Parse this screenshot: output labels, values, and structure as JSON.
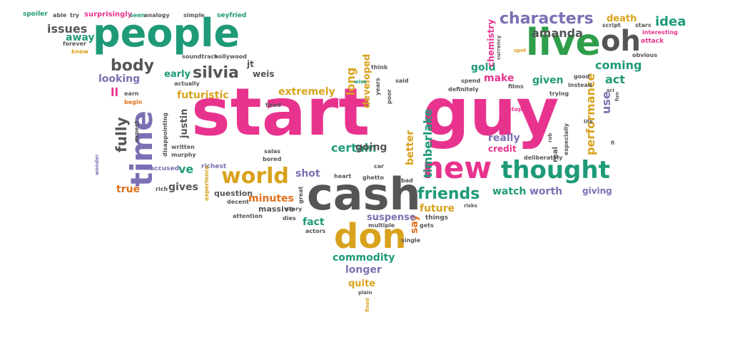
{
  "colors": {
    "pink": "#e8338e",
    "teal": "#1e9a78",
    "gray": "#555555",
    "purple": "#7d6fb3",
    "gold": "#d9a21c",
    "orange": "#e0701b",
    "green": "#2e9e4a"
  },
  "words": [
    {
      "text": "start",
      "color": "pink",
      "size": 92
    },
    {
      "text": "guy",
      "color": "pink",
      "size": 92
    },
    {
      "text": "cash",
      "color": "gray",
      "size": 62
    },
    {
      "text": "people",
      "color": "teal",
      "size": 52
    },
    {
      "text": "live",
      "color": "green",
      "size": 52
    },
    {
      "text": "don",
      "color": "gold",
      "size": 50
    },
    {
      "text": "new",
      "color": "pink",
      "size": 42
    },
    {
      "text": "time",
      "color": "purple",
      "size": 40
    },
    {
      "text": "thought",
      "color": "teal",
      "size": 34
    },
    {
      "text": "oh",
      "color": "gray",
      "size": 40
    },
    {
      "text": "world",
      "color": "gold",
      "size": 30
    },
    {
      "text": "characters",
      "color": "purple",
      "size": 22
    },
    {
      "text": "friends",
      "color": "teal",
      "size": 22
    },
    {
      "text": "body",
      "color": "gray",
      "size": 22
    },
    {
      "text": "silvia",
      "color": "gray",
      "size": 22
    },
    {
      "text": "idea",
      "color": "teal",
      "size": 18
    },
    {
      "text": "amanda",
      "color": "gray",
      "size": 16
    },
    {
      "text": "coming",
      "color": "teal",
      "size": 16
    },
    {
      "text": "fully",
      "color": "gray",
      "size": 20
    },
    {
      "text": "issues",
      "color": "gray",
      "size": 16
    },
    {
      "text": "away",
      "color": "teal",
      "size": 14
    },
    {
      "text": "looking",
      "color": "purple",
      "size": 14
    },
    {
      "text": "early",
      "color": "teal",
      "size": 13
    },
    {
      "text": "futuristic",
      "color": "gold",
      "size": 14
    },
    {
      "text": "extremely",
      "color": "gold",
      "size": 14
    },
    {
      "text": "long",
      "color": "gold",
      "size": 16
    },
    {
      "text": "developed",
      "color": "gold",
      "size": 13
    },
    {
      "text": "gold",
      "color": "teal",
      "size": 14
    },
    {
      "text": "make",
      "color": "pink",
      "size": 14
    },
    {
      "text": "given",
      "color": "teal",
      "size": 14
    },
    {
      "text": "act",
      "color": "teal",
      "size": 16
    },
    {
      "text": "use",
      "color": "purple",
      "size": 16
    },
    {
      "text": "performance",
      "color": "gold",
      "size": 16
    },
    {
      "text": "ll",
      "color": "pink",
      "size": 16
    },
    {
      "text": "justin",
      "color": "gray",
      "size": 13
    },
    {
      "text": "certain",
      "color": "teal",
      "size": 16
    },
    {
      "text": "going",
      "color": "gray",
      "size": 14
    },
    {
      "text": "better",
      "color": "gold",
      "size": 14
    },
    {
      "text": "timberlake",
      "color": "teal",
      "size": 16
    },
    {
      "text": "really",
      "color": "purple",
      "size": 14
    },
    {
      "text": "credit",
      "color": "pink",
      "size": 12
    },
    {
      "text": "ve",
      "color": "teal",
      "size": 16
    },
    {
      "text": "gives",
      "color": "gray",
      "size": 14
    },
    {
      "text": "true",
      "color": "orange",
      "size": 14
    },
    {
      "text": "shot",
      "color": "purple",
      "size": 14
    },
    {
      "text": "minutes",
      "color": "orange",
      "size": 14
    },
    {
      "text": "watch",
      "color": "teal",
      "size": 14
    },
    {
      "text": "worth",
      "color": "purple",
      "size": 14
    },
    {
      "text": "giving",
      "color": "purple",
      "size": 12
    },
    {
      "text": "say",
      "color": "orange",
      "size": 14
    },
    {
      "text": "future",
      "color": "gold",
      "size": 14
    },
    {
      "text": "suspense",
      "color": "purple",
      "size": 13
    },
    {
      "text": "fact",
      "color": "teal",
      "size": 14
    },
    {
      "text": "commodity",
      "color": "teal",
      "size": 14
    },
    {
      "text": "longer",
      "color": "purple",
      "size": 14
    },
    {
      "text": "quite",
      "color": "gold",
      "size": 13
    },
    {
      "text": "death",
      "color": "gold",
      "size": 13
    },
    {
      "text": "chemistry",
      "color": "pink",
      "size": 12
    },
    {
      "text": "jt",
      "color": "gray",
      "size": 12
    },
    {
      "text": "weis",
      "color": "gray",
      "size": 12
    },
    {
      "text": "massive",
      "color": "gray",
      "size": 11
    },
    {
      "text": "question",
      "color": "gray",
      "size": 11
    },
    {
      "text": "spoiler",
      "color": "teal",
      "size": 9
    },
    {
      "text": "able",
      "color": "gray",
      "size": 8
    },
    {
      "text": "try",
      "color": "gray",
      "size": 8
    },
    {
      "text": "surprisingly",
      "color": "pink",
      "size": 10
    },
    {
      "text": "seen",
      "color": "teal",
      "size": 8
    },
    {
      "text": "analogy",
      "color": "gray",
      "size": 8
    },
    {
      "text": "simple",
      "color": "gray",
      "size": 8
    },
    {
      "text": "seyfried",
      "color": "teal",
      "size": 9
    },
    {
      "text": "forever",
      "color": "gray",
      "size": 8
    },
    {
      "text": "know",
      "color": "gold",
      "size": 8
    },
    {
      "text": "soundtrack",
      "color": "gray",
      "size": 8
    },
    {
      "text": "hollywood",
      "color": "gray",
      "size": 8
    },
    {
      "text": "actually",
      "color": "gray",
      "size": 8
    },
    {
      "text": "earn",
      "color": "gray",
      "size": 8
    },
    {
      "text": "begin",
      "color": "orange",
      "size": 8
    },
    {
      "text": "expect",
      "color": "gray",
      "size": 8
    },
    {
      "text": "disappointing",
      "color": "gray",
      "size": 8
    },
    {
      "text": "written",
      "color": "gray",
      "size": 8
    },
    {
      "text": "murphy",
      "color": "gray",
      "size": 8
    },
    {
      "text": "accused",
      "color": "purple",
      "size": 9
    },
    {
      "text": "richest",
      "color": "purple",
      "size": 9
    },
    {
      "text": "bored",
      "color": "gray",
      "size": 8
    },
    {
      "text": "car",
      "color": "gray",
      "size": 8
    },
    {
      "text": "heart",
      "color": "gray",
      "size": 8
    },
    {
      "text": "ghetto",
      "color": "gray",
      "size": 8
    },
    {
      "text": "bad",
      "color": "gray",
      "size": 8
    },
    {
      "text": "experience",
      "color": "gold",
      "size": 8
    },
    {
      "text": "rich",
      "color": "gray",
      "size": 8
    },
    {
      "text": "decent",
      "color": "gray",
      "size": 8
    },
    {
      "text": "attention",
      "color": "gray",
      "size": 8
    },
    {
      "text": "story",
      "color": "gray",
      "size": 8
    },
    {
      "text": "dies",
      "color": "gray",
      "size": 8
    },
    {
      "text": "actors",
      "color": "gray",
      "size": 8
    },
    {
      "text": "multiple",
      "color": "gray",
      "size": 8
    },
    {
      "text": "gets",
      "color": "gray",
      "size": 8
    },
    {
      "text": "things",
      "color": "gray",
      "size": 9
    },
    {
      "text": "single",
      "color": "gray",
      "size": 8
    },
    {
      "text": "risks",
      "color": "gray",
      "size": 7
    },
    {
      "text": "plain",
      "color": "gray",
      "size": 7
    },
    {
      "text": "fixed",
      "color": "gold",
      "size": 7
    },
    {
      "text": "tired",
      "color": "gray",
      "size": 8
    },
    {
      "text": "salas",
      "color": "gray",
      "size": 8
    },
    {
      "text": "wonder",
      "color": "purple",
      "size": 7
    },
    {
      "text": "think",
      "color": "gray",
      "size": 8
    },
    {
      "text": "said",
      "color": "gray",
      "size": 8
    },
    {
      "text": "years",
      "color": "gray",
      "size": 8
    },
    {
      "text": "poor",
      "color": "gray",
      "size": 8
    },
    {
      "text": "definitely",
      "color": "gray",
      "size": 8
    },
    {
      "text": "spend",
      "color": "gray",
      "size": 8
    },
    {
      "text": "stop",
      "color": "pink",
      "size": 8
    },
    {
      "text": "films",
      "color": "gray",
      "size": 8
    },
    {
      "text": "trying",
      "color": "gray",
      "size": 8
    },
    {
      "text": "instead",
      "color": "gray",
      "size": 8
    },
    {
      "text": "good",
      "color": "gray",
      "size": 8
    },
    {
      "text": "sci",
      "color": "gray",
      "size": 7
    },
    {
      "text": "fun",
      "color": "gray",
      "size": 7
    },
    {
      "text": "real",
      "color": "gray",
      "size": 10
    },
    {
      "text": "especially",
      "color": "gray",
      "size": 8
    },
    {
      "text": "life",
      "color": "gray",
      "size": 7
    },
    {
      "text": "rob",
      "color": "gray",
      "size": 7
    },
    {
      "text": "deliberately",
      "color": "gray",
      "size": 8
    },
    {
      "text": "fi",
      "color": "gray",
      "size": 7
    },
    {
      "text": "script",
      "color": "gray",
      "size": 8
    },
    {
      "text": "stars",
      "color": "gray",
      "size": 8
    },
    {
      "text": "interesting",
      "color": "pink",
      "size": 8
    },
    {
      "text": "attack",
      "color": "pink",
      "size": 9
    },
    {
      "text": "obvious",
      "color": "gray",
      "size": 8
    },
    {
      "text": "currency",
      "color": "gray",
      "size": 7
    },
    {
      "text": "spot",
      "color": "gold",
      "size": 7
    },
    {
      "text": "great",
      "color": "gray",
      "size": 8
    },
    {
      "text": "wise",
      "color": "teal",
      "size": 7
    }
  ]
}
